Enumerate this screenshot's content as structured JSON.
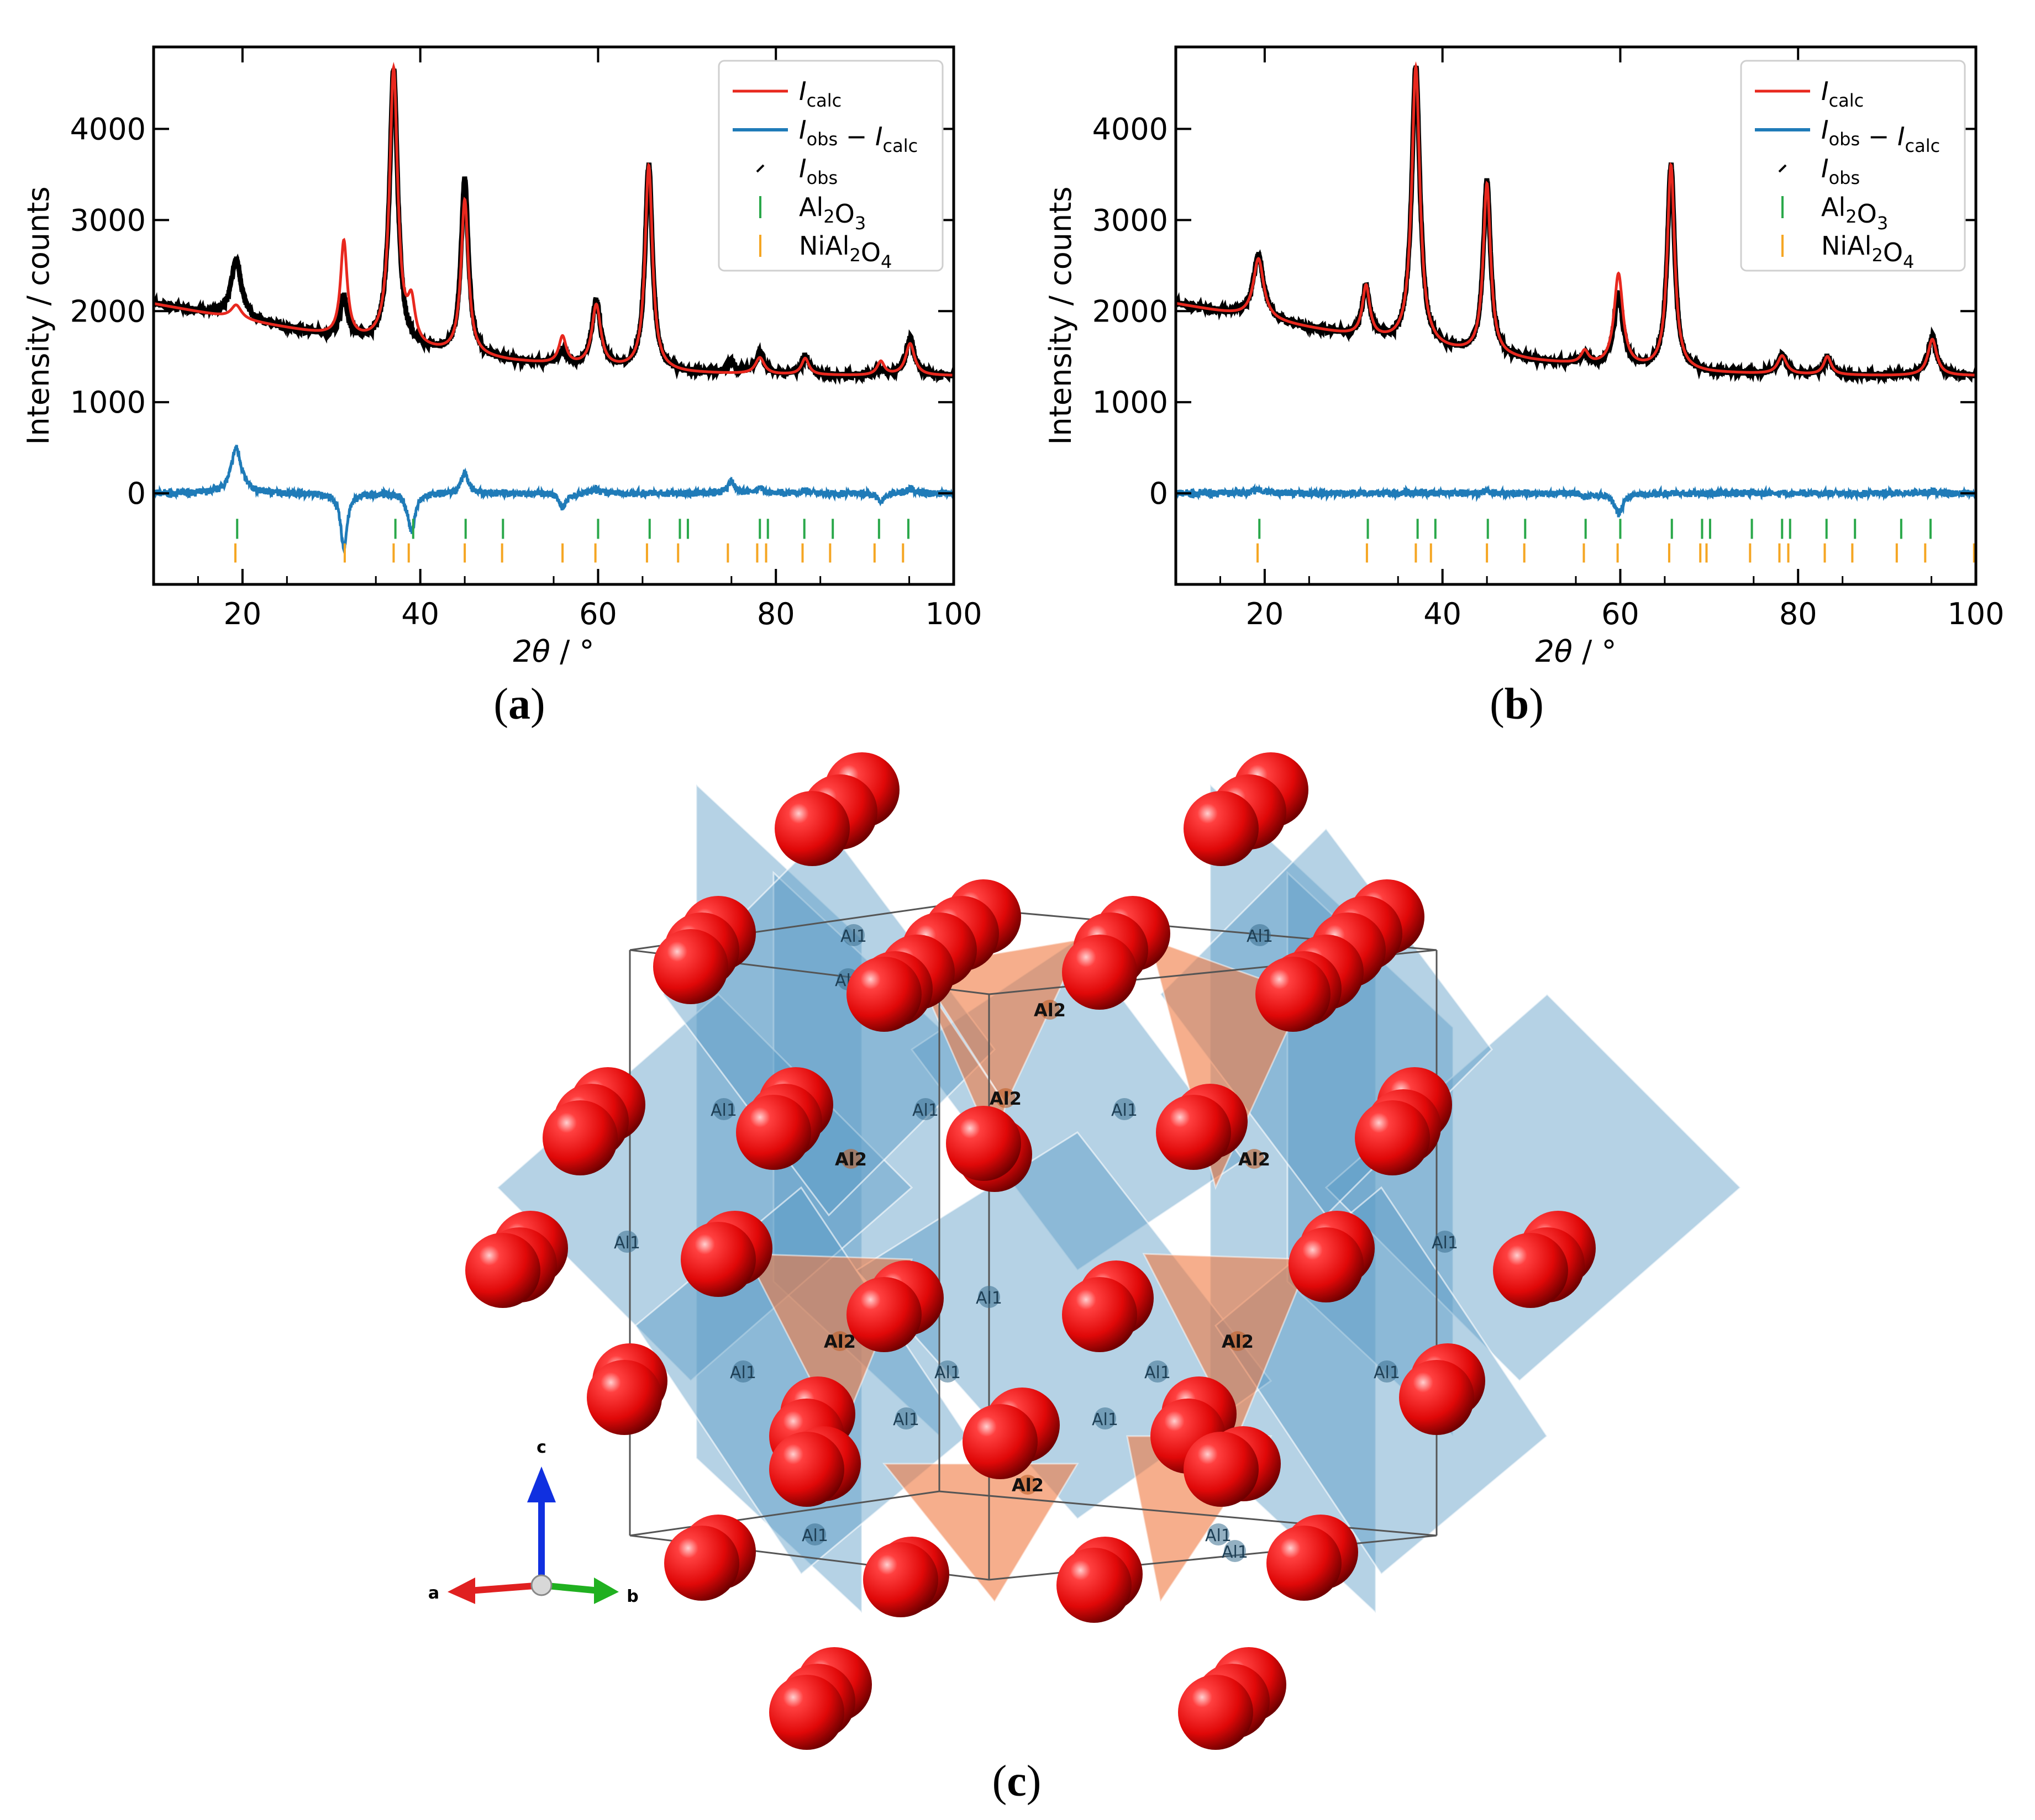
{
  "colors": {
    "calc": "#e8281e",
    "diff": "#1f7bb8",
    "obs": "#000000",
    "tick_al2o3": "#2aa84a",
    "tick_nial2o4": "#f5a623",
    "oxygen": "#e01010",
    "octa": "#5a9cc5",
    "tetra": "#f07840",
    "axis_a": "#e02020",
    "axis_b": "#20b020",
    "axis_c": "#1030e0"
  },
  "legend": {
    "calc": {
      "main": "I",
      "sub": "calc"
    },
    "diff": {
      "a": "I",
      "a_sub": "obs",
      "minus": " − ",
      "b": "I",
      "b_sub": "calc"
    },
    "obs": {
      "main": "I",
      "sub": "obs"
    },
    "al2o3": {
      "p1": "Al",
      "s1": "2",
      "p2": "O",
      "s2": "3"
    },
    "nial2o4": {
      "p1": "NiAl",
      "s1": "2",
      "p2": "O",
      "s2": "4"
    }
  },
  "chart_data": [
    {
      "panel": "(a)",
      "type": "line",
      "xlabel_italic": "2θ",
      "xlabel_unit": " / °",
      "ylabel": "Intensity / counts",
      "xlim": [
        10,
        100
      ],
      "ylim": [
        -1000,
        4900
      ],
      "xticks": [
        20,
        40,
        60,
        80,
        100
      ],
      "yticks": [
        0,
        1000,
        2000,
        3000,
        4000
      ],
      "background": [
        [
          10,
          2080
        ],
        [
          20,
          1900
        ],
        [
          30,
          1720
        ],
        [
          40,
          1560
        ],
        [
          50,
          1450
        ],
        [
          60,
          1370
        ],
        [
          70,
          1320
        ],
        [
          80,
          1300
        ],
        [
          90,
          1290
        ],
        [
          100,
          1290
        ]
      ],
      "peaks_obs": [
        [
          19.3,
          650,
          0.7
        ],
        [
          31.4,
          450,
          0.45
        ],
        [
          37.0,
          3050,
          0.55
        ],
        [
          45.0,
          1920,
          0.5
        ],
        [
          56.0,
          150,
          0.5
        ],
        [
          59.8,
          720,
          0.6
        ],
        [
          65.7,
          2250,
          0.5
        ],
        [
          75.0,
          120,
          0.5
        ],
        [
          78.2,
          230,
          0.6
        ],
        [
          83.3,
          210,
          0.5
        ],
        [
          91.8,
          60,
          0.5
        ],
        [
          95.1,
          400,
          0.6
        ]
      ],
      "peaks_calc": [
        [
          19.3,
          150,
          0.7
        ],
        [
          31.4,
          1050,
          0.45
        ],
        [
          37.0,
          3030,
          0.55
        ],
        [
          39.0,
          420,
          0.5
        ],
        [
          45.0,
          1700,
          0.5
        ],
        [
          56.0,
          300,
          0.5
        ],
        [
          59.8,
          680,
          0.6
        ],
        [
          65.7,
          2250,
          0.5
        ],
        [
          78.2,
          180,
          0.6
        ],
        [
          83.3,
          180,
          0.5
        ],
        [
          91.8,
          150,
          0.5
        ],
        [
          95.1,
          350,
          0.6
        ]
      ],
      "ticks_al2o3": [
        19.4,
        37.2,
        39.2,
        45.1,
        49.3,
        60.0,
        65.8,
        69.2,
        70.1,
        78.2,
        79.1,
        83.2,
        86.4,
        91.6,
        94.9
      ],
      "ticks_nial2o4": [
        19.2,
        31.5,
        37.0,
        38.7,
        45.0,
        49.2,
        56.0,
        59.7,
        65.5,
        69.0,
        74.6,
        77.9,
        78.9,
        83.0,
        86.1,
        91.1,
        94.3
      ]
    },
    {
      "panel": "(b)",
      "type": "line",
      "xlabel_italic": "2θ",
      "xlabel_unit": " / °",
      "ylabel": "Intensity / counts",
      "xlim": [
        10,
        100
      ],
      "ylim": [
        -1000,
        4900
      ],
      "xticks": [
        20,
        40,
        60,
        80,
        100
      ],
      "yticks": [
        0,
        1000,
        2000,
        3000,
        4000
      ],
      "background": [
        [
          10,
          2080
        ],
        [
          20,
          1900
        ],
        [
          30,
          1720
        ],
        [
          40,
          1560
        ],
        [
          50,
          1450
        ],
        [
          60,
          1370
        ],
        [
          70,
          1320
        ],
        [
          80,
          1300
        ],
        [
          90,
          1290
        ],
        [
          100,
          1290
        ]
      ],
      "peaks_obs": [
        [
          19.3,
          700,
          0.7
        ],
        [
          31.4,
          560,
          0.5
        ],
        [
          37.0,
          3080,
          0.55
        ],
        [
          45.0,
          1900,
          0.5
        ],
        [
          56.0,
          110,
          0.5
        ],
        [
          59.8,
          800,
          0.6
        ],
        [
          65.7,
          2250,
          0.5
        ],
        [
          78.2,
          200,
          0.6
        ],
        [
          83.3,
          200,
          0.5
        ],
        [
          95.1,
          420,
          0.6
        ]
      ],
      "peaks_calc": [
        [
          19.3,
          660,
          0.7
        ],
        [
          31.4,
          560,
          0.5
        ],
        [
          37.0,
          3060,
          0.55
        ],
        [
          45.0,
          1880,
          0.5
        ],
        [
          56.0,
          140,
          0.5
        ],
        [
          59.8,
          1020,
          0.6
        ],
        [
          65.7,
          2250,
          0.5
        ],
        [
          78.2,
          200,
          0.6
        ],
        [
          83.3,
          200,
          0.5
        ],
        [
          95.1,
          400,
          0.6
        ]
      ],
      "ticks_al2o3": [
        19.4,
        31.6,
        37.2,
        39.2,
        45.1,
        49.3,
        56.1,
        60.0,
        65.8,
        69.2,
        70.1,
        74.8,
        78.2,
        79.1,
        83.2,
        86.4,
        91.6,
        94.9
      ],
      "ticks_nial2o4": [
        19.2,
        31.5,
        37.0,
        38.7,
        45.0,
        49.2,
        55.9,
        59.7,
        65.5,
        69.0,
        69.7,
        74.6,
        77.9,
        78.9,
        83.0,
        86.1,
        91.1,
        94.3,
        99.8
      ]
    }
  ],
  "captions": {
    "a": "a",
    "b": "b",
    "c": "c"
  },
  "structure": {
    "site_al1": "Al1",
    "site_al2": "Al2",
    "axis_a": "a",
    "axis_b": "b",
    "axis_c": "c"
  }
}
